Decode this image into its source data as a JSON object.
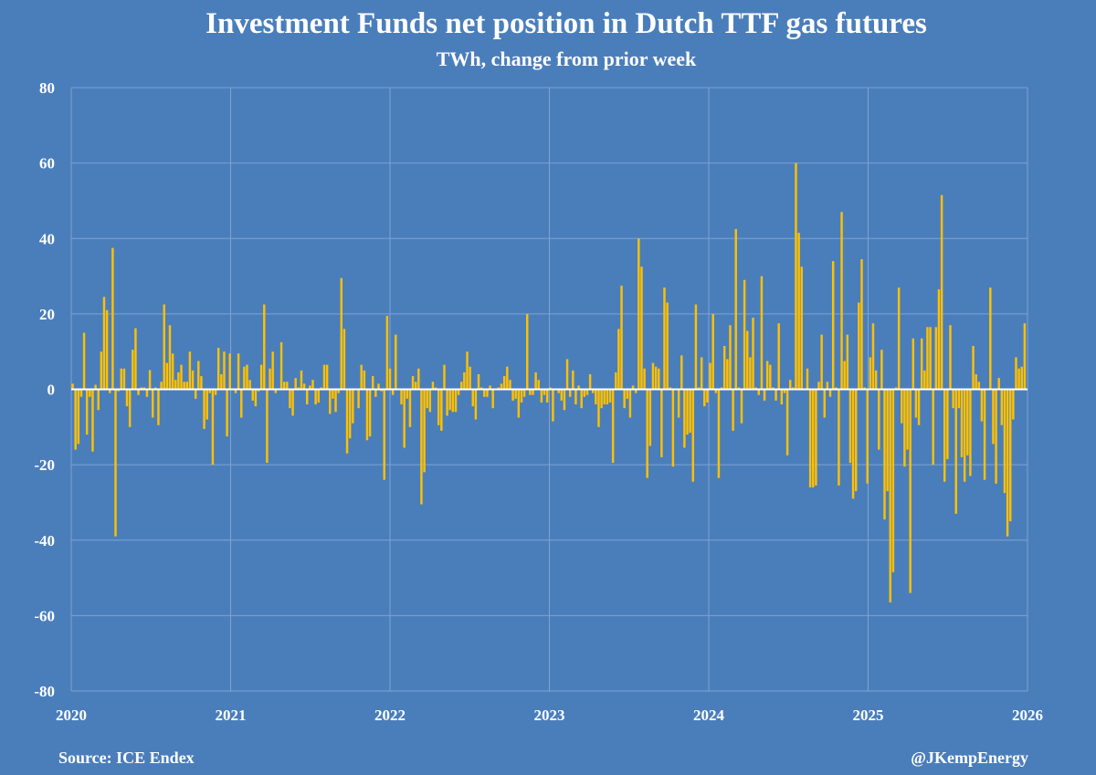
{
  "colors": {
    "background": "#4a7ebb",
    "bars": "#ffc000",
    "grid": "#7ea3d2",
    "zero_line": "#ffffff",
    "text": "#ffffff"
  },
  "footer": {
    "source": "Source: ICE Endex",
    "credit": "@JKempEnergy"
  },
  "chart_data": {
    "type": "bar",
    "title": "Investment Funds net position in Dutch TTF gas futures",
    "subtitle": "TWh, change from prior week",
    "xlabel": "",
    "ylabel": "",
    "ylim": [
      -80,
      80
    ],
    "yticks": [
      80,
      60,
      40,
      20,
      0,
      -20,
      -40,
      -60,
      -80
    ],
    "ytick_labels": [
      "80",
      "60",
      "40",
      "20",
      "0",
      "-20",
      "-40",
      "-60",
      "-80"
    ],
    "xlim": [
      2020,
      2026
    ],
    "xticks": [
      2020,
      2021,
      2022,
      2023,
      2024,
      2025,
      2026
    ],
    "xtick_labels": [
      "2020",
      "2021",
      "2022",
      "2023",
      "2024",
      "2025",
      "2026"
    ],
    "grid": true,
    "legend": "none",
    "series": [
      {
        "frequency": "weekly, from first week of 2020",
        "values": [
          1.5,
          -16,
          -14.5,
          -2,
          15,
          -12,
          -2,
          -16.5,
          1.2,
          -5.5,
          10,
          24.5,
          21,
          -1,
          37.5,
          -39,
          -0.5,
          5.5,
          5.5,
          -4.5,
          -10,
          10.5,
          16.2,
          -1.5,
          0.5,
          0.5,
          -2,
          5.1,
          -7.5,
          0.5,
          -9.5,
          2,
          22.5,
          7,
          17,
          9.5,
          2.5,
          4.5,
          6.5,
          2,
          2,
          10,
          5,
          -2.5,
          7.5,
          3.5,
          -10.5,
          -8,
          -1,
          -20,
          -1.5,
          11,
          4,
          10,
          -12.5,
          9.5,
          0.2,
          -1,
          9.5,
          -7.5,
          6,
          6.5,
          2.5,
          -3,
          -4.5,
          -0.5,
          6.5,
          22.5,
          -19.5,
          5.5,
          10,
          -1,
          0.1,
          12.5,
          2,
          2,
          -5,
          -7,
          3,
          0.5,
          5,
          1.5,
          -4,
          1,
          2.5,
          -4,
          -3.5,
          0.5,
          6.5,
          6.5,
          -6.5,
          -2.5,
          -6,
          -1,
          29.5,
          16,
          -17,
          -13,
          -9,
          0.2,
          -5,
          6.5,
          5,
          -13.5,
          -12.5,
          3.5,
          -2,
          1.5,
          -0.5,
          -24,
          19.5,
          5.5,
          -1.5,
          14.5,
          0.2,
          -4,
          -15.5,
          -2.5,
          -10,
          3.5,
          2,
          5.5,
          -30.5,
          -22,
          -5,
          -6,
          2,
          0.5,
          -9.5,
          -11,
          6.5,
          -7,
          -5.5,
          -6,
          -6,
          -1.5,
          2,
          4.5,
          10,
          6,
          -4.5,
          -8,
          4,
          0.5,
          -2,
          -2,
          1,
          -5,
          0.2,
          0.5,
          1.5,
          3.5,
          6,
          2.5,
          -3,
          -2.5,
          -7.5,
          -3.5,
          -2,
          20,
          -1.5,
          -1.5,
          4.5,
          2.5,
          -3.5,
          -1.5,
          -3.5,
          0.5,
          -8.5,
          0.2,
          -1,
          -3,
          -5.5,
          8,
          -2,
          5,
          -4,
          1,
          -5,
          -2,
          -1.5,
          4,
          -1,
          -4,
          -10,
          -5,
          -4,
          -4,
          -3.5,
          -19.5,
          4.5,
          16,
          27.5,
          -5,
          -2.5,
          -7.5,
          1,
          -1,
          40,
          32.5,
          5.5,
          -23.5,
          -15,
          7,
          6,
          5.5,
          -18,
          27,
          23,
          0.5,
          -20.5,
          0.2,
          -7.5,
          9,
          -15.5,
          -12,
          -11.5,
          -24.5,
          22.5,
          0.5,
          8.5,
          -4.5,
          -3.5,
          7,
          20,
          -1,
          -23.5,
          0.5,
          11.5,
          8,
          17,
          -11,
          42.5,
          0.5,
          -9,
          29,
          15.5,
          8.5,
          19,
          0.5,
          -1.5,
          30,
          -3,
          7.5,
          6.5,
          0.5,
          -3,
          17.5,
          -4,
          -1,
          -17.5,
          2.5,
          0.5,
          60,
          41.5,
          32.5,
          0.2,
          5.5,
          -26,
          -26,
          -25.5,
          2,
          14.5,
          -7.5,
          2,
          -2,
          34,
          0.5,
          -25.5,
          47,
          7.5,
          14.5,
          -19.5,
          -29,
          -27,
          23,
          34.5,
          0.5,
          -25,
          8.5,
          17.5,
          5,
          -16,
          10.5,
          -34.5,
          -27,
          -56.5,
          -48.5,
          0.5,
          27,
          -9,
          -20.5,
          -16,
          -54,
          13.5,
          -7.5,
          -9.5,
          13.5,
          5,
          16.5,
          16.5,
          -20,
          16.5,
          26.5,
          51.5,
          -24.5,
          -18.5,
          17,
          -5,
          -33,
          -5,
          -18,
          -24.5,
          -17.5,
          -23,
          11.5,
          4,
          2,
          -8.5,
          -24,
          0.2,
          27,
          -14.5,
          -25,
          3,
          -9.5,
          -27.5,
          -39,
          -35,
          -8,
          8.5,
          5.5,
          6,
          17.5
        ]
      }
    ]
  }
}
